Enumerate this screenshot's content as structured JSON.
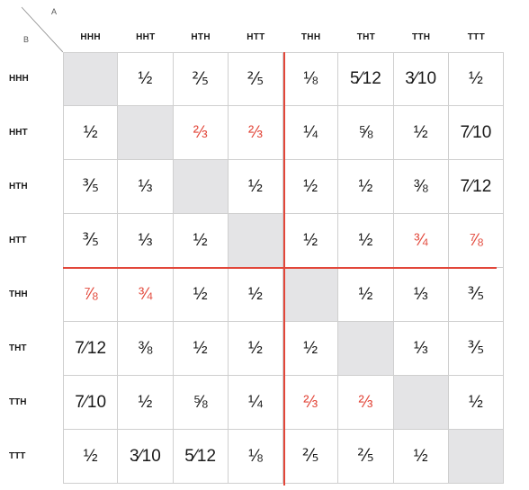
{
  "corner": {
    "col_axis_label": "A",
    "row_axis_label": "B"
  },
  "columns": [
    "HHH",
    "HHT",
    "HTH",
    "HTT",
    "THH",
    "THT",
    "TTH",
    "TTT"
  ],
  "rows": [
    {
      "label": "HHH",
      "cells": [
        "",
        "½",
        "⅖",
        "⅖",
        "⅛",
        "5⁄12",
        "3⁄10",
        "½"
      ]
    },
    {
      "label": "HHT",
      "cells": [
        "½",
        "",
        "⅔",
        "⅔",
        "¼",
        "⅝",
        "½",
        "7⁄10"
      ]
    },
    {
      "label": "HTH",
      "cells": [
        "⅗",
        "⅓",
        "",
        "½",
        "½",
        "½",
        "⅜",
        "7⁄12"
      ]
    },
    {
      "label": "HTT",
      "cells": [
        "⅗",
        "⅓",
        "½",
        "",
        "½",
        "½",
        "¾",
        "⅞"
      ]
    },
    {
      "label": "THH",
      "cells": [
        "⅞",
        "¾",
        "½",
        "½",
        "",
        "½",
        "⅓",
        "⅗"
      ]
    },
    {
      "label": "THT",
      "cells": [
        "7⁄12",
        "⅜",
        "½",
        "½",
        "½",
        "",
        "⅓",
        "⅗"
      ]
    },
    {
      "label": "TTH",
      "cells": [
        "7⁄10",
        "½",
        "⅝",
        "¼",
        "⅔",
        "⅔",
        "",
        "½"
      ]
    },
    {
      "label": "TTT",
      "cells": [
        "½",
        "3⁄10",
        "5⁄12",
        "⅛",
        "⅖",
        "⅖",
        "½",
        ""
      ]
    }
  ],
  "highlighted": [
    [
      1,
      2
    ],
    [
      1,
      3
    ],
    [
      3,
      6
    ],
    [
      3,
      7
    ],
    [
      4,
      0
    ],
    [
      4,
      1
    ],
    [
      6,
      4
    ],
    [
      6,
      5
    ]
  ],
  "colors": {
    "highlight": "#e2473a",
    "diagonal": "#e4e4e6",
    "gridline": "#cfcfcf"
  }
}
